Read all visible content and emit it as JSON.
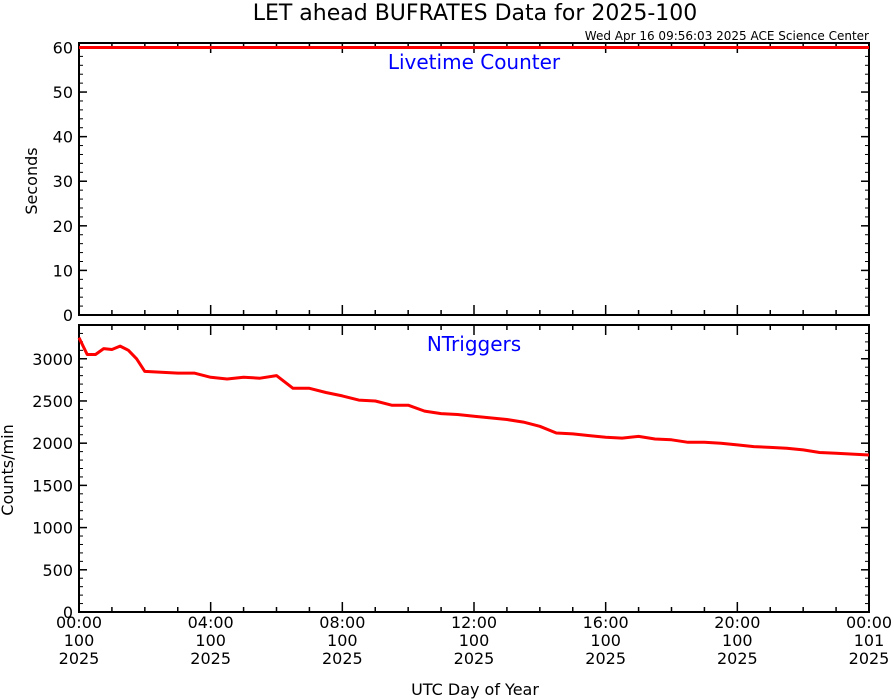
{
  "title": "LET ahead BUFRATES Data for 2025-100",
  "timestamp": "Wed Apr 16 09:56:03 2025 ACE Science Center",
  "xlabel": "UTC Day of Year",
  "chart_data": [
    {
      "type": "line",
      "title": "Livetime Counter",
      "ylabel": "Seconds",
      "ylim": [
        0,
        61
      ],
      "yticks": [
        "0",
        "10",
        "20",
        "30",
        "40",
        "50",
        "60"
      ],
      "xlim": [
        0,
        24
      ],
      "series": [
        {
          "color": "#ff0000",
          "x": [
            0,
            24
          ],
          "y": [
            60,
            60
          ]
        }
      ]
    },
    {
      "type": "line",
      "title": "NTriggers",
      "ylabel": "Counts/min",
      "ylim": [
        0,
        3400
      ],
      "yticks": [
        "0",
        "500",
        "1000",
        "1500",
        "2000",
        "2500",
        "3000"
      ],
      "xlim": [
        0,
        24
      ],
      "series": [
        {
          "color": "#ff0000",
          "x": [
            0,
            0.25,
            0.5,
            0.75,
            1.0,
            1.25,
            1.5,
            1.75,
            2.0,
            2.5,
            3.0,
            3.5,
            4.0,
            4.5,
            5.0,
            5.5,
            6.0,
            6.5,
            7.0,
            7.5,
            8.0,
            8.5,
            9.0,
            9.5,
            10.0,
            10.5,
            11.0,
            11.5,
            12.0,
            12.5,
            13.0,
            13.5,
            14.0,
            14.5,
            15.0,
            15.5,
            16.0,
            16.5,
            17.0,
            17.5,
            18.0,
            18.5,
            19.0,
            19.5,
            20.0,
            20.5,
            21.0,
            21.5,
            22.0,
            22.5,
            23.0,
            23.5,
            24.0
          ],
          "y": [
            3250,
            3050,
            3050,
            3120,
            3110,
            3150,
            3100,
            3000,
            2850,
            2840,
            2830,
            2830,
            2780,
            2760,
            2780,
            2770,
            2800,
            2650,
            2650,
            2600,
            2560,
            2510,
            2500,
            2450,
            2450,
            2380,
            2350,
            2340,
            2320,
            2300,
            2280,
            2250,
            2200,
            2120,
            2110,
            2090,
            2070,
            2060,
            2080,
            2050,
            2040,
            2010,
            2010,
            2000,
            1980,
            1960,
            1950,
            1940,
            1920,
            1890,
            1880,
            1870,
            1860
          ]
        }
      ]
    }
  ],
  "xticks": [
    {
      "x": 0,
      "time": "00:00",
      "day": "100",
      "year": "2025"
    },
    {
      "x": 4,
      "time": "04:00",
      "day": "100",
      "year": "2025"
    },
    {
      "x": 8,
      "time": "08:00",
      "day": "100",
      "year": "2025"
    },
    {
      "x": 12,
      "time": "12:00",
      "day": "100",
      "year": "2025"
    },
    {
      "x": 16,
      "time": "16:00",
      "day": "100",
      "year": "2025"
    },
    {
      "x": 20,
      "time": "20:00",
      "day": "100",
      "year": "2025"
    },
    {
      "x": 24,
      "time": "00:00",
      "day": "101",
      "year": "2025"
    }
  ]
}
